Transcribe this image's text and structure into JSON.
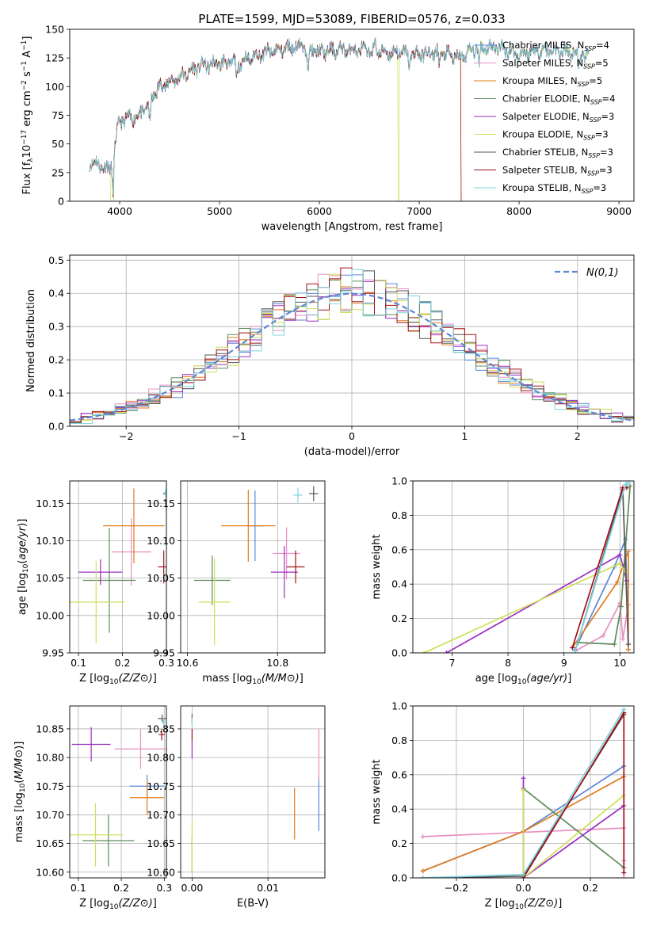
{
  "figure_title": "PLATE=1599, MJD=53089, FIBERID=0576, z=0.033",
  "models": [
    {
      "name": "Chabrier MILES",
      "label": "Chabrier MILES, N",
      "n": "4",
      "color": "#5b87d6"
    },
    {
      "name": "Salpeter MILES",
      "label": "Salpeter MILES, N",
      "n": "5",
      "color": "#e98fc0"
    },
    {
      "name": "Kroupa MILES",
      "label": "Kroupa MILES, N",
      "n": "5",
      "color": "#e07b1f"
    },
    {
      "name": "Chabrier ELODIE",
      "label": "Chabrier ELODIE, N",
      "n": "4",
      "color": "#5e8c5a"
    },
    {
      "name": "Salpeter ELODIE",
      "label": "Salpeter ELODIE, N",
      "n": "3",
      "color": "#9b2fc0"
    },
    {
      "name": "Kroupa ELODIE",
      "label": "Kroupa ELODIE, N",
      "n": "3",
      "color": "#cfe05a"
    },
    {
      "name": "Chabrier STELIB",
      "label": "Chabrier STELIB, N",
      "n": "3",
      "color": "#555555"
    },
    {
      "name": "Salpeter STELIB",
      "label": "Salpeter STELIB, N",
      "n": "3",
      "color": "#a01218"
    },
    {
      "name": "Kroupa STELIB",
      "label": "Kroupa STELIB, N",
      "n": "3",
      "color": "#7fd4e0"
    }
  ],
  "nssp_sub": "SSP",
  "chart_data": [
    {
      "id": "spectrum",
      "type": "line",
      "xlabel": "wavelength [Angstrom, rest frame]",
      "ylabel": "Flux [f",
      "xlim": [
        3500,
        9150
      ],
      "ylim": [
        0,
        150
      ],
      "xticks": [
        4000,
        5000,
        6000,
        7000,
        8000,
        9000
      ],
      "yticks": [
        0,
        25,
        50,
        75,
        100,
        125,
        150
      ],
      "legend": "upper right",
      "series_x_range": [
        3700,
        8700
      ],
      "anchors": [
        [
          3700,
          35
        ],
        [
          3900,
          28
        ],
        [
          4000,
          70
        ],
        [
          4200,
          75
        ],
        [
          4400,
          100
        ],
        [
          4600,
          108
        ],
        [
          4800,
          118
        ],
        [
          5000,
          120
        ],
        [
          5200,
          122
        ],
        [
          5400,
          128
        ],
        [
          5600,
          132
        ],
        [
          5800,
          136
        ],
        [
          6000,
          130
        ],
        [
          6200,
          132
        ],
        [
          6400,
          132
        ],
        [
          6600,
          130
        ],
        [
          6800,
          130
        ],
        [
          7000,
          128
        ],
        [
          7200,
          130
        ],
        [
          7400,
          125
        ],
        [
          7600,
          135
        ],
        [
          7800,
          134
        ],
        [
          8000,
          128
        ],
        [
          8200,
          132
        ],
        [
          8400,
          131
        ],
        [
          8600,
          128
        ],
        [
          8700,
          125
        ]
      ],
      "absorptions": [
        [
          3934,
          30
        ],
        [
          4300,
          20
        ],
        [
          5175,
          15
        ],
        [
          5890,
          18
        ],
        [
          6563,
          -8
        ],
        [
          6900,
          10
        ],
        [
          7200,
          10
        ],
        [
          7600,
          15
        ],
        [
          8600,
          10
        ]
      ],
      "truncations": [
        {
          "model": 5,
          "x": 3905
        },
        {
          "model": 5,
          "x": 6790
        },
        {
          "model": 2,
          "x": 7420
        },
        {
          "model": 7,
          "x": 7420
        }
      ]
    },
    {
      "id": "residuals",
      "type": "histogram",
      "xlabel": "(data-model)/error",
      "ylabel": "Normed distribution",
      "xlim": [
        -2.5,
        2.5
      ],
      "ylim": [
        0,
        0.515
      ],
      "xticks": [
        -2,
        -1,
        0,
        1,
        2
      ],
      "yticks": [
        0,
        0.1,
        0.2,
        0.3,
        0.4,
        0.5
      ],
      "grid": true,
      "legend": "upper right",
      "reference_label": "N(0,1)",
      "reference": "gaussian mean 0 sigma 1",
      "bin_width": 0.1
    },
    {
      "id": "age_vs_Z",
      "type": "errorbar",
      "xlabel": "Z [log",
      "ylabel": "age  [log",
      "xlim": [
        0.08,
        0.3
      ],
      "ylim": [
        9.95,
        10.18
      ],
      "xticks": [
        0.1,
        0.2,
        0.3
      ],
      "yticks": [
        9.95,
        10.0,
        10.05,
        10.1,
        10.15
      ],
      "grid": true,
      "points": [
        {
          "x": 0.3,
          "xerr": 0.005,
          "y": 10.155,
          "yerr": 0.015
        },
        {
          "x": 0.22,
          "xerr": 0.045,
          "y": 10.085,
          "yerr": 0.045
        },
        {
          "x": 0.226,
          "xerr": 0.07,
          "y": 10.12,
          "yerr": 0.05
        },
        {
          "x": 0.17,
          "xerr": 0.06,
          "y": 10.047,
          "yerr": 0.07
        },
        {
          "x": 0.15,
          "xerr": 0.05,
          "y": 10.058,
          "yerr": 0.017
        },
        {
          "x": 0.14,
          "xerr": 0.065,
          "y": 10.018,
          "yerr": 0.055
        },
        {
          "x": 0.3,
          "xerr": 0.008,
          "y": 10.163,
          "yerr": 0.005
        },
        {
          "x": 0.294,
          "xerr": 0.013,
          "y": 10.065,
          "yerr": 0.022
        },
        {
          "x": 0.298,
          "xerr": 0.005,
          "y": 10.164,
          "yerr": 0.005
        }
      ]
    },
    {
      "id": "age_vs_mass",
      "type": "errorbar",
      "xlabel": "mass [log",
      "ylabel": "",
      "xlim": [
        10.585,
        10.905
      ],
      "ylim": [
        9.95,
        10.18
      ],
      "xticks": [
        10.6,
        10.8
      ],
      "yticks": [
        9.95,
        10.0,
        10.05,
        10.1,
        10.15
      ],
      "grid": true,
      "points": [
        {
          "x": 10.75,
          "xerr": 0.018,
          "y": 10.12,
          "yerr": 0.047
        },
        {
          "x": 10.82,
          "xerr": 0.03,
          "y": 10.083,
          "yerr": 0.035
        },
        {
          "x": 10.735,
          "xerr": 0.06,
          "y": 10.12,
          "yerr": 0.048
        },
        {
          "x": 10.655,
          "xerr": 0.04,
          "y": 10.047,
          "yerr": 0.033
        },
        {
          "x": 10.815,
          "xerr": 0.03,
          "y": 10.058,
          "yerr": 0.035
        },
        {
          "x": 10.66,
          "xerr": 0.035,
          "y": 10.018,
          "yerr": 0.058
        },
        {
          "x": 10.88,
          "xerr": 0.01,
          "y": 10.163,
          "yerr": 0.01
        },
        {
          "x": 10.84,
          "xerr": 0.02,
          "y": 10.065,
          "yerr": 0.022
        },
        {
          "x": 10.845,
          "xerr": 0.01,
          "y": 10.161,
          "yerr": 0.01
        }
      ]
    },
    {
      "id": "weight_vs_age",
      "type": "line",
      "xlabel": "age  [log",
      "ylabel": "mass weight",
      "xlim": [
        6.3,
        10.25
      ],
      "ylim": [
        0,
        1
      ],
      "xticks": [
        7,
        8,
        9,
        10
      ],
      "yticks": [
        0,
        0.2,
        0.4,
        0.6,
        0.8,
        1.0
      ],
      "grid": true,
      "series": [
        {
          "model": 0,
          "points": [
            [
              9.2,
              0.02
            ],
            [
              9.9,
              0.5
            ],
            [
              10.1,
              0.66
            ],
            [
              10.15,
              0.02
            ]
          ]
        },
        {
          "model": 1,
          "points": [
            [
              9.2,
              0.01
            ],
            [
              9.7,
              0.1
            ],
            [
              10.0,
              0.29
            ],
            [
              10.05,
              0.08
            ],
            [
              10.15,
              0.28
            ]
          ]
        },
        {
          "model": 2,
          "points": [
            [
              9.15,
              0.03
            ],
            [
              9.95,
              0.41
            ],
            [
              10.15,
              0.59
            ],
            [
              10.15,
              0.02
            ]
          ]
        },
        {
          "model": 3,
          "points": [
            [
              9.25,
              0.06
            ],
            [
              9.9,
              0.05
            ],
            [
              10.02,
              0.27
            ],
            [
              10.18,
              0.97
            ]
          ]
        },
        {
          "model": 4,
          "points": [
            [
              6.9,
              0.0
            ],
            [
              10.0,
              0.57
            ],
            [
              10.12,
              0.42
            ]
          ]
        },
        {
          "model": 5,
          "points": [
            [
              6.5,
              0.0
            ],
            [
              10.0,
              0.52
            ],
            [
              10.1,
              0.47
            ]
          ]
        },
        {
          "model": 6,
          "points": [
            [
              9.2,
              0.01
            ],
            [
              10.05,
              0.95
            ],
            [
              10.15,
              0.05
            ]
          ]
        },
        {
          "model": 7,
          "points": [
            [
              9.15,
              0.03
            ],
            [
              10.05,
              0.96
            ],
            [
              10.12,
              0.96
            ]
          ]
        },
        {
          "model": 8,
          "points": [
            [
              9.2,
              0.01
            ],
            [
              10.1,
              0.98
            ],
            [
              10.15,
              0.99
            ]
          ]
        }
      ]
    },
    {
      "id": "mass_vs_Z",
      "type": "errorbar",
      "xlabel": "Z [log",
      "ylabel": "mass [log",
      "xlim": [
        0.08,
        0.305
      ],
      "ylim": [
        10.59,
        10.89
      ],
      "xticks": [
        0.1,
        0.2,
        0.3
      ],
      "yticks": [
        10.6,
        10.65,
        10.7,
        10.75,
        10.8,
        10.85
      ],
      "grid": true,
      "points": [
        {
          "x": 0.26,
          "xerr": 0.04,
          "y": 10.75,
          "yerr": 0.02
        },
        {
          "x": 0.245,
          "xerr": 0.06,
          "y": 10.815,
          "yerr": 0.035
        },
        {
          "x": 0.26,
          "xerr": 0.04,
          "y": 10.73,
          "yerr": 0.03
        },
        {
          "x": 0.17,
          "xerr": 0.06,
          "y": 10.655,
          "yerr": 0.045
        },
        {
          "x": 0.13,
          "xerr": 0.045,
          "y": 10.823,
          "yerr": 0.03
        },
        {
          "x": 0.14,
          "xerr": 0.065,
          "y": 10.665,
          "yerr": 0.055
        },
        {
          "x": 0.295,
          "xerr": 0.01,
          "y": 10.868,
          "yerr": 0.007
        },
        {
          "x": 0.294,
          "xerr": 0.007,
          "y": 10.84,
          "yerr": 0.01
        },
        {
          "x": 0.298,
          "xerr": 0.004,
          "y": 10.862,
          "yerr": 0.007
        }
      ]
    },
    {
      "id": "mass_vs_EBV",
      "type": "errorbar",
      "xlabel": "E(B-V)",
      "ylabel": "",
      "xlim": [
        -0.0015,
        0.0175
      ],
      "ylim": [
        10.59,
        10.89
      ],
      "xticks": [
        0.0,
        0.01
      ],
      "yticks": [
        10.6,
        10.65,
        10.7,
        10.75,
        10.8,
        10.85
      ],
      "grid": true,
      "points": [
        {
          "x": 0.0167,
          "xerr": 0.0,
          "y": 10.72,
          "yerr": 0.048
        },
        {
          "x": 0.0167,
          "xerr": 0.0,
          "y": 10.805,
          "yerr": 0.045
        },
        {
          "x": 0.0135,
          "xerr": 0.0,
          "y": 10.702,
          "yerr": 0.045
        },
        {
          "x": 0.0,
          "xerr": 0.0,
          "y": 10.63,
          "yerr": 0.03
        },
        {
          "x": 0.0,
          "xerr": 0.0,
          "y": 10.815,
          "yerr": 0.017
        },
        {
          "x": 0.0,
          "xerr": 0.0,
          "y": 10.645,
          "yerr": 0.045
        },
        {
          "x": 0.0,
          "xerr": 0.0,
          "y": 10.868,
          "yerr": 0.008
        },
        {
          "x": 0.0,
          "xerr": 0.0,
          "y": 10.84,
          "yerr": 0.01
        },
        {
          "x": 0.0,
          "xerr": 0.0,
          "y": 10.862,
          "yerr": 0.008
        }
      ]
    },
    {
      "id": "weight_vs_Z",
      "type": "line",
      "xlabel": "Z [log",
      "ylabel": "mass weight",
      "xlim": [
        -0.33,
        0.33
      ],
      "ylim": [
        0,
        1
      ],
      "xticks": [
        -0.2,
        0.0,
        0.2
      ],
      "yticks": [
        0,
        0.2,
        0.4,
        0.6,
        0.8,
        1.0
      ],
      "grid": true,
      "series": [
        {
          "model": 0,
          "points": [
            [
              -0.3,
              0.04
            ],
            [
              0.0,
              0.27
            ],
            [
              0.3,
              0.65
            ]
          ]
        },
        {
          "model": 1,
          "points": [
            [
              -0.3,
              0.24
            ],
            [
              0.3,
              0.29
            ],
            [
              0.3,
              0.1
            ],
            [
              0.3,
              0.0
            ]
          ]
        },
        {
          "model": 2,
          "points": [
            [
              -0.3,
              0.04
            ],
            [
              0.0,
              0.27
            ],
            [
              0.3,
              0.59
            ]
          ]
        },
        {
          "model": 3,
          "points": [
            [
              0.0,
              0.52
            ],
            [
              0.3,
              0.06
            ]
          ]
        },
        {
          "model": 4,
          "points": [
            [
              0.0,
              0.58
            ],
            [
              0.0,
              0.0
            ],
            [
              0.3,
              0.42
            ]
          ]
        },
        {
          "model": 5,
          "points": [
            [
              0.0,
              0.51
            ],
            [
              0.0,
              0.0
            ],
            [
              0.3,
              0.48
            ]
          ]
        },
        {
          "model": 6,
          "points": [
            [
              -0.3,
              0.0
            ],
            [
              0.0,
              0.01
            ],
            [
              0.3,
              0.95
            ]
          ]
        },
        {
          "model": 7,
          "points": [
            [
              0.0,
              0.0
            ],
            [
              0.3,
              0.96
            ],
            [
              0.3,
              0.03
            ]
          ]
        },
        {
          "model": 8,
          "points": [
            [
              -0.3,
              0.0
            ],
            [
              0.0,
              0.02
            ],
            [
              0.3,
              0.98
            ]
          ]
        }
      ]
    }
  ]
}
